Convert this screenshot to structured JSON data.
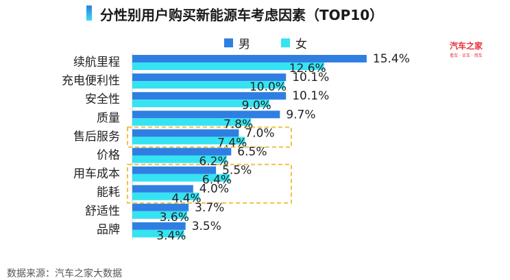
{
  "title": "分性别用户购买新能源车考虑因素（TOP10）",
  "brand": {
    "name": "汽车之家",
    "tagline": "看车 · 买车 · 用车"
  },
  "source": "数据来源：汽车之家大数据",
  "colors": {
    "male": "#2f7fe3",
    "female": "#35e3f2",
    "highlight": "#f0c040",
    "title_accent": "#2b7fe0"
  },
  "chart_data": {
    "type": "bar",
    "orientation": "horizontal",
    "categories": [
      "续航里程",
      "充电便利性",
      "安全性",
      "质量",
      "售后服务",
      "价格",
      "用车成本",
      "能耗",
      "舒适性",
      "品牌"
    ],
    "series": [
      {
        "name": "男",
        "values": [
          15.4,
          10.1,
          10.1,
          9.7,
          7.0,
          6.5,
          5.5,
          4.0,
          3.7,
          3.5
        ]
      },
      {
        "name": "女",
        "values": [
          12.6,
          10.0,
          9.0,
          7.8,
          7.4,
          6.2,
          6.4,
          4.4,
          3.6,
          3.4
        ]
      }
    ],
    "value_labels_male": [
      "15.4%",
      "10.1%",
      "10.1%",
      "9.7%",
      "7.0%",
      "6.5%",
      "5.5%",
      "4.0%",
      "3.7%",
      "3.5%"
    ],
    "value_labels_female": [
      "12.6%",
      "10.0%",
      "9.0%",
      "7.8%",
      "7.4%",
      "6.2%",
      "6.4%",
      "4.4%",
      "3.6%",
      "3.4%"
    ],
    "highlighted_categories": [
      [
        "售后服务"
      ],
      [
        "用车成本",
        "能耗"
      ]
    ],
    "legend": "top",
    "unit": "%",
    "grid": false
  }
}
